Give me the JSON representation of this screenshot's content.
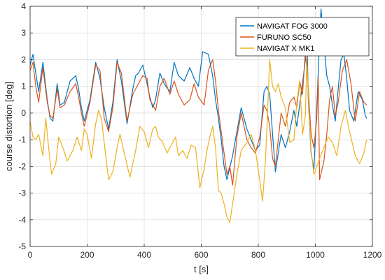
{
  "chart_data": {
    "type": "line",
    "title": "",
    "xlabel": "t [s]",
    "ylabel": "course distortion [deg]",
    "xlim": [
      0,
      1200
    ],
    "ylim": [
      -5,
      4
    ],
    "xticks": [
      0,
      200,
      400,
      600,
      800,
      1000,
      1200
    ],
    "yticks": [
      -5,
      -4,
      -3,
      -2,
      -1,
      0,
      1,
      2,
      3,
      4
    ],
    "xtick_labels": [
      "0",
      "200",
      "400",
      "600",
      "800",
      "1000",
      "1200"
    ],
    "ytick_labels": [
      "-5",
      "-4",
      "-3",
      "-2",
      "-1",
      "0",
      "1",
      "2",
      "3",
      "4"
    ],
    "grid": true,
    "legend_position": "top-right",
    "series": [
      {
        "name": "NAVIGAT FOG 3000",
        "color": "#0072BD",
        "x": [
          0,
          10,
          20,
          30,
          45,
          60,
          70,
          80,
          95,
          105,
          120,
          140,
          160,
          170,
          180,
          190,
          210,
          230,
          245,
          260,
          275,
          290,
          305,
          320,
          340,
          360,
          370,
          380,
          395,
          410,
          420,
          430,
          440,
          455,
          470,
          490,
          505,
          520,
          540,
          560,
          575,
          590,
          605,
          625,
          640,
          650,
          660,
          670,
          680,
          690,
          710,
          725,
          740,
          760,
          775,
          790,
          805,
          820,
          830,
          840,
          850,
          860,
          870,
          880,
          895,
          910,
          925,
          935,
          945,
          955,
          965,
          970,
          975,
          985,
          995,
          1005,
          1010,
          1015,
          1020,
          1030,
          1040,
          1050,
          1060,
          1070,
          1080,
          1090,
          1100,
          1110,
          1120,
          1135,
          1150,
          1165,
          1175,
          1180
        ],
        "y": [
          1.8,
          2.2,
          1.5,
          0.8,
          1.9,
          0.5,
          -0.2,
          -0.3,
          1.1,
          0.3,
          0.4,
          1.2,
          1.4,
          0.9,
          0.2,
          -0.3,
          0.5,
          1.9,
          1.3,
          0.2,
          -0.6,
          0.4,
          2.0,
          1.2,
          -0.4,
          0.9,
          1.4,
          1.5,
          1.8,
          1.1,
          0.6,
          0.2,
          0.5,
          1.5,
          1.1,
          0.8,
          1.9,
          1.4,
          1.2,
          1.7,
          1.3,
          1.0,
          2.3,
          2.2,
          1.4,
          0.5,
          -0.2,
          -1.0,
          -2.0,
          -2.5,
          -1.6,
          -0.7,
          0.2,
          -0.6,
          -1.0,
          -1.4,
          -1.2,
          0.8,
          1.0,
          0.7,
          -0.8,
          -2.2,
          -1.5,
          -0.8,
          -1.3,
          -0.7,
          0.1,
          -0.5,
          0.3,
          1.1,
          2.0,
          3.3,
          0.6,
          -1.5,
          -2.1,
          0.2,
          1.5,
          2.8,
          3.9,
          2.6,
          1.4,
          1.0,
          0.3,
          -0.3,
          0.9,
          2.0,
          2.2,
          1.3,
          0.1,
          -0.3,
          0.8,
          0.5,
          -0.1,
          -0.2
        ]
      },
      {
        "name": "FURUNO SC50",
        "color": "#D95319",
        "x": [
          0,
          10,
          20,
          30,
          45,
          60,
          70,
          80,
          95,
          105,
          120,
          140,
          160,
          170,
          180,
          190,
          210,
          230,
          245,
          260,
          275,
          290,
          305,
          320,
          340,
          360,
          380,
          395,
          410,
          420,
          430,
          440,
          455,
          470,
          490,
          505,
          520,
          540,
          560,
          575,
          590,
          610,
          625,
          640,
          650,
          660,
          670,
          680,
          690,
          700,
          710,
          725,
          740,
          760,
          775,
          790,
          805,
          820,
          830,
          840,
          850,
          860,
          870,
          880,
          895,
          910,
          925,
          935,
          945,
          955,
          965,
          975,
          985,
          995,
          1005,
          1010,
          1015,
          1030,
          1040,
          1050,
          1060,
          1070,
          1080,
          1095,
          1110,
          1125,
          1140,
          1155,
          1170,
          1180
        ],
        "y": [
          1.6,
          1.9,
          1.0,
          0.4,
          1.7,
          0.4,
          -0.1,
          -0.2,
          0.9,
          0.2,
          0.3,
          0.8,
          1.1,
          0.6,
          0.0,
          -0.5,
          0.4,
          1.8,
          1.6,
          -0.2,
          -0.7,
          0.2,
          1.9,
          1.5,
          -0.3,
          0.7,
          1.1,
          1.4,
          1.3,
          0.5,
          0.3,
          0.1,
          1.0,
          1.3,
          0.7,
          1.2,
          0.7,
          0.3,
          0.5,
          1.1,
          0.6,
          0.3,
          1.6,
          2.0,
          1.2,
          0.1,
          -0.7,
          -1.5,
          -2.3,
          -2.0,
          -2.7,
          -0.9,
          0.0,
          -1.0,
          -1.3,
          -1.5,
          -0.9,
          0.3,
          0.1,
          -0.5,
          -1.7,
          -2.0,
          -1.0,
          0.0,
          -0.5,
          0.4,
          0.6,
          0.2,
          1.2,
          0.7,
          2.3,
          1.0,
          -0.8,
          -1.3,
          -0.2,
          1.3,
          -2.5,
          -1.8,
          -0.8,
          0.5,
          1.0,
          -0.1,
          0.4,
          1.6,
          2.0,
          1.1,
          -0.3,
          0.8,
          0.4,
          0.3
        ]
      },
      {
        "name": "NAVIGAT X MK1",
        "color": "#EDB120",
        "x": [
          0,
          10,
          20,
          30,
          45,
          55,
          65,
          75,
          90,
          100,
          115,
          130,
          150,
          165,
          180,
          190,
          200,
          215,
          230,
          240,
          250,
          265,
          275,
          290,
          305,
          315,
          330,
          350,
          370,
          385,
          400,
          415,
          430,
          440,
          450,
          465,
          480,
          495,
          510,
          520,
          535,
          550,
          565,
          580,
          595,
          610,
          620,
          630,
          640,
          650,
          660,
          670,
          680,
          690,
          700,
          710,
          725,
          740,
          760,
          775,
          790,
          805,
          815,
          825,
          830,
          840,
          850,
          860,
          870,
          880,
          895,
          910,
          925,
          935,
          945,
          955,
          965,
          970,
          975,
          985,
          995,
          1005,
          1015,
          1030,
          1045,
          1060,
          1075,
          1090,
          1105,
          1120,
          1140,
          1155,
          1170,
          1180
        ],
        "y": [
          -0.3,
          -0.9,
          -1.0,
          -0.8,
          -1.6,
          -0.2,
          -1.3,
          -2.3,
          -1.9,
          -0.9,
          -1.3,
          -1.8,
          -1.4,
          -0.9,
          -1.4,
          -0.6,
          -0.8,
          -1.7,
          -0.4,
          0.1,
          -0.2,
          -1.6,
          -2.5,
          -2.2,
          -1.3,
          -0.8,
          -1.5,
          -2.4,
          -1.4,
          -0.5,
          -0.7,
          -1.3,
          -0.6,
          -0.5,
          -0.9,
          -1.1,
          -1.5,
          -1.2,
          -0.9,
          -1.6,
          -1.4,
          -1.7,
          -1.2,
          -1.3,
          -2.8,
          -2.1,
          -1.4,
          -0.9,
          -0.5,
          -1.3,
          -2.9,
          -3.0,
          -3.4,
          -3.9,
          -4.1,
          -3.4,
          -2.3,
          -1.4,
          -1.1,
          -0.8,
          -1.4,
          -2.5,
          -3.3,
          -1.8,
          -0.6,
          2.0,
          1.0,
          0.8,
          1.1,
          0.6,
          0.2,
          -1.1,
          -1.0,
          0.4,
          1.2,
          -0.8,
          -0.1,
          2.0,
          0.8,
          -1.4,
          -2.3,
          -2.0,
          -1.7,
          -1.3,
          -0.9,
          -1.1,
          -1.6,
          -0.5,
          0.1,
          -0.7,
          -1.6,
          -1.9,
          -1.5,
          -1.0
        ]
      }
    ]
  }
}
